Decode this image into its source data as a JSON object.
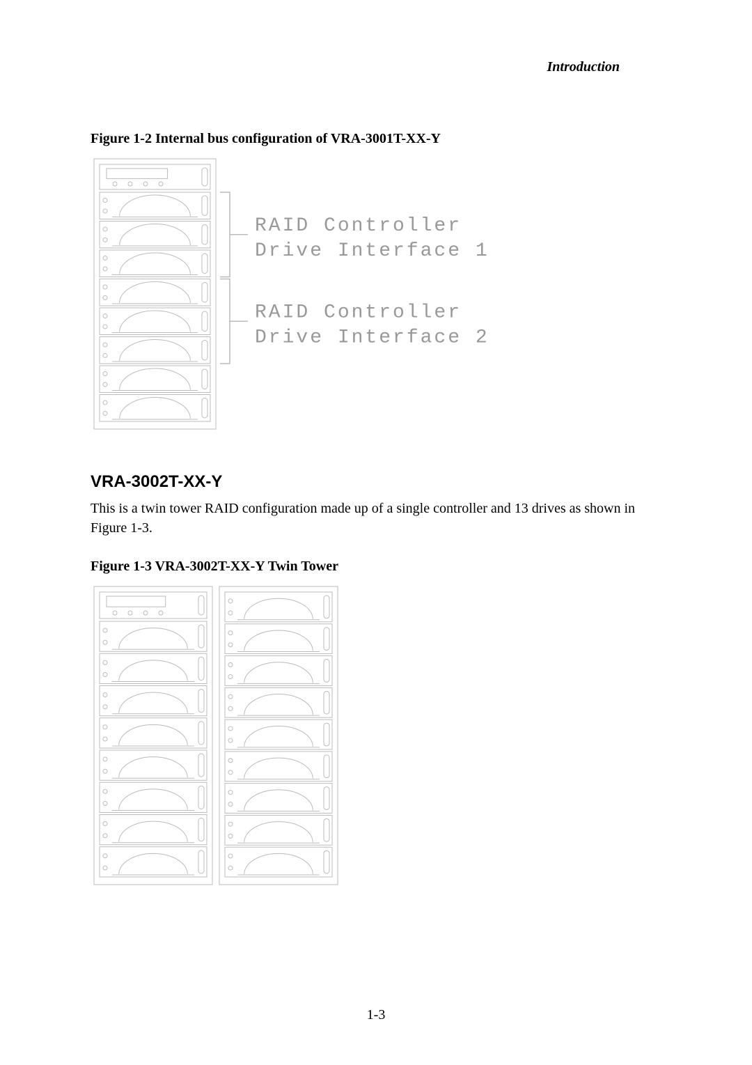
{
  "header": {
    "section_title": "Introduction"
  },
  "figure1": {
    "caption": "Figure 1-2 Internal bus configuration of VRA-3001T-XX-Y",
    "label1_line1": "RAID Controller",
    "label1_line2": "Drive Interface 1",
    "label2_line1": "RAID Controller",
    "label2_line2": "Drive Interface 2",
    "num_bays": 8,
    "stroke": "#bbbbbb",
    "stroke_width": 1,
    "bg": "#ffffff"
  },
  "section": {
    "heading": "VRA-3002T-XX-Y",
    "body": "This is a twin tower RAID configuration made up of a single controller and 13 drives as shown in Figure 1-3."
  },
  "figure2": {
    "caption": "Figure 1-3 VRA-3002T-XX-Y Twin Tower",
    "left_bays": 8,
    "right_bays": 9,
    "stroke": "#bbbbbb",
    "stroke_width": 1,
    "bg": "#ffffff"
  },
  "page_number": "1-3"
}
